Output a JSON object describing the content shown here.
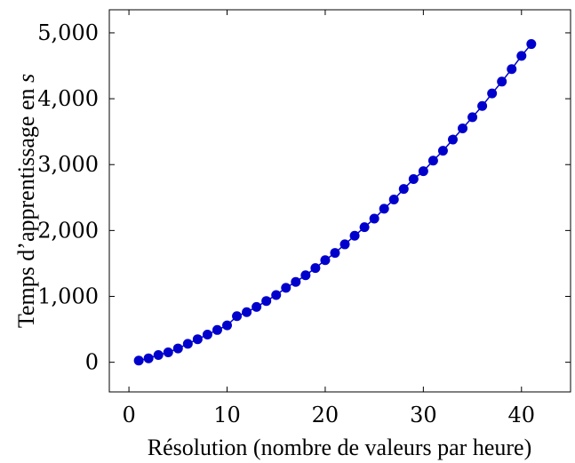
{
  "chart_data": {
    "type": "line",
    "title": "",
    "xlabel": "Résolution (nombre de valeurs par heure)",
    "ylabel": "Temps d’apprentissage en ",
    "ylabel_var": "s",
    "xlim": [
      -2,
      45
    ],
    "ylim": [
      -450,
      5350
    ],
    "xticks": [
      0,
      10,
      20,
      30,
      40
    ],
    "xtick_labels": [
      "0",
      "10",
      "20",
      "30",
      "40"
    ],
    "yticks": [
      0,
      1000,
      2000,
      3000,
      4000,
      5000
    ],
    "ytick_labels": [
      "0",
      "1,000",
      "2,000",
      "3,000",
      "4,000",
      "5,000"
    ],
    "grid": false,
    "legend": "none",
    "series": [
      {
        "color": "#0000cc",
        "marker": "circle",
        "x": [
          1,
          2,
          3,
          4,
          5,
          6,
          7,
          8,
          9,
          10,
          11,
          12,
          13,
          14,
          15,
          16,
          17,
          18,
          19,
          20,
          21,
          22,
          23,
          24,
          25,
          26,
          27,
          28,
          29,
          30,
          31,
          32,
          33,
          34,
          35,
          36,
          37,
          38,
          39,
          40,
          41
        ],
        "y": [
          25,
          60,
          110,
          150,
          210,
          280,
          350,
          420,
          490,
          560,
          700,
          760,
          840,
          930,
          1020,
          1130,
          1220,
          1320,
          1430,
          1550,
          1660,
          1790,
          1920,
          2050,
          2180,
          2330,
          2470,
          2630,
          2780,
          2900,
          3060,
          3210,
          3380,
          3550,
          3720,
          3890,
          4080,
          4260,
          4450,
          4650,
          4830
        ]
      }
    ]
  }
}
